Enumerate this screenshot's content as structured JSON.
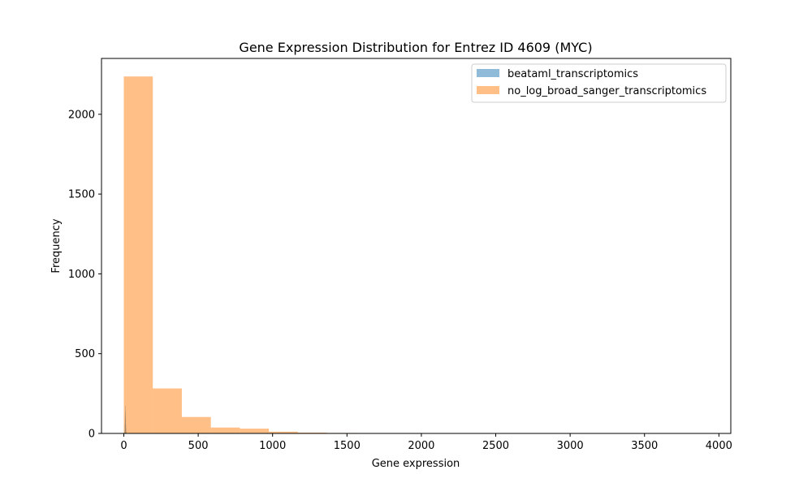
{
  "chart_data": {
    "type": "bar",
    "title": "Gene Expression Distribution for Entrez ID 4609 (MYC)",
    "xlabel": "Gene expression",
    "ylabel": "Frequency",
    "xlim": [
      -150,
      4080
    ],
    "ylim": [
      0,
      2350
    ],
    "xticks": [
      0,
      500,
      1000,
      1500,
      2000,
      2500,
      3000,
      3500,
      4000
    ],
    "yticks": [
      0,
      500,
      1000,
      1500,
      2000
    ],
    "grid": false,
    "legend_position": "top-right",
    "series": [
      {
        "name": "beataml_transcriptomics",
        "color": "#1f77b4",
        "opacity": 0.5,
        "bin_edges": [
          0,
          1.2,
          2.4,
          3.6,
          4.8,
          6.0,
          7.2,
          8.4,
          9.6,
          10.8,
          12.0,
          13.2,
          14.4,
          15.6,
          16.8,
          18.0,
          19.2,
          20.4,
          21.6,
          22.8,
          24.0
        ],
        "counts": [
          0,
          0,
          0,
          5,
          20,
          60,
          115,
          175,
          140,
          95,
          55,
          30,
          12,
          5,
          2,
          1,
          0,
          0,
          0,
          0
        ]
      },
      {
        "name": "no_log_broad_sanger_transcriptomics",
        "color": "#ff7f0e",
        "opacity": 0.5,
        "bin_edges": [
          0,
          195,
          390,
          585,
          780,
          975,
          1170,
          1365,
          1560,
          1755,
          1950,
          2145,
          2340,
          2535,
          2730,
          2925,
          3120,
          3315,
          3510,
          3705,
          3900
        ],
        "counts": [
          2237,
          282,
          103,
          37,
          30,
          11,
          5,
          3,
          2,
          1,
          1,
          0,
          1,
          0,
          0,
          1,
          0,
          0,
          0,
          1
        ]
      }
    ]
  }
}
